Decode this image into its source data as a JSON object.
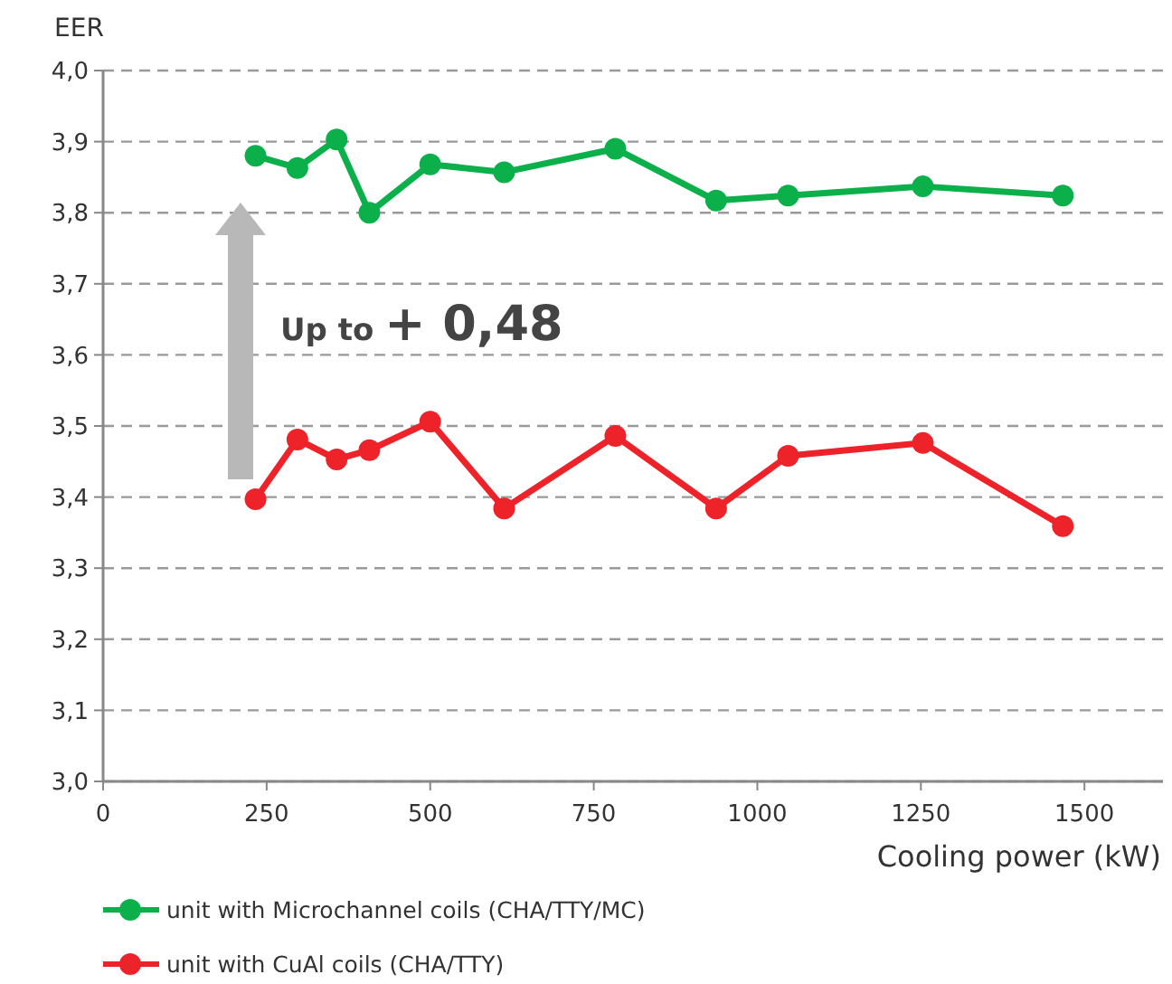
{
  "chart_data": {
    "type": "line",
    "ylabel": "EER",
    "xlabel": "Cooling power (kW)",
    "x": [
      233,
      297,
      357,
      407,
      500,
      613,
      783,
      937,
      1047,
      1253,
      1467
    ],
    "series": [
      {
        "name": "unit with Microchannel coils (CHA/TTY/MC)",
        "color": "#0bb04b",
        "values": [
          3.88,
          3.863,
          3.903,
          3.8,
          3.868,
          3.857,
          3.89,
          3.817,
          3.824,
          3.837,
          3.824
        ]
      },
      {
        "name": "unit with CuAl coils (CHA/TTY)",
        "color": "#ee2229",
        "values": [
          3.397,
          3.481,
          3.453,
          3.466,
          3.506,
          3.384,
          3.486,
          3.384,
          3.458,
          3.476,
          3.359
        ]
      }
    ],
    "xlim": [
      0,
      1620
    ],
    "xticks": [
      0,
      250,
      500,
      750,
      1000,
      1250,
      1500
    ],
    "ylim": [
      3.0,
      4.0
    ],
    "yticks": [
      {
        "value": 3.0,
        "label": "3,0"
      },
      {
        "value": 3.1,
        "label": "3,1"
      },
      {
        "value": 3.2,
        "label": "3,2"
      },
      {
        "value": 3.3,
        "label": "3,3"
      },
      {
        "value": 3.4,
        "label": "3,4"
      },
      {
        "value": 3.5,
        "label": "3,5"
      },
      {
        "value": 3.6,
        "label": "3,6"
      },
      {
        "value": 3.7,
        "label": "3,7"
      },
      {
        "value": 3.8,
        "label": "3,8"
      },
      {
        "value": 3.9,
        "label": "3,9"
      },
      {
        "value": 4.0,
        "label": "4,0"
      }
    ],
    "grid": "y",
    "legend": "bottom",
    "marker": "circle",
    "line_style": "solid",
    "annotations": [
      "Up to + 0,48"
    ]
  }
}
